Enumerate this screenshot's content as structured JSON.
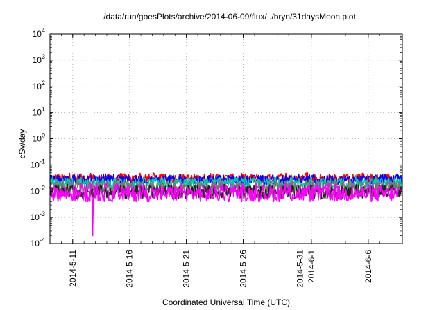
{
  "chart_data": {
    "type": "line",
    "title": "/data/run/goesPlots/archive/2014-06-09/flux/../bryn/31daysMoon.plot",
    "xlabel": "Coordinated Universal Time (UTC)",
    "ylabel": "cSv/day",
    "yscale": "log",
    "ylim": [
      0.0001,
      10000
    ],
    "xlim": [
      "2014-05-09T00:00",
      "2014-06-09T00:00"
    ],
    "y_ticks": [
      {
        "base": "10",
        "exp": "-4",
        "value": 0.0001
      },
      {
        "base": "10",
        "exp": "-3",
        "value": 0.001
      },
      {
        "base": "10",
        "exp": "-2",
        "value": 0.01
      },
      {
        "base": "10",
        "exp": "-1",
        "value": 0.1
      },
      {
        "base": "10",
        "exp": "0",
        "value": 1
      },
      {
        "base": "10",
        "exp": "1",
        "value": 10
      },
      {
        "base": "10",
        "exp": "2",
        "value": 100
      },
      {
        "base": "10",
        "exp": "3",
        "value": 1000
      },
      {
        "base": "10",
        "exp": "4",
        "value": 10000
      }
    ],
    "x_ticks": [
      "2014-5-11",
      "2014-5-16",
      "2014-5-21",
      "2014-5-26",
      "2014-5-31",
      "2014-6-1",
      "2014-6-6"
    ],
    "grid": true,
    "series": [
      {
        "color": "#ff0000",
        "min": 0.02,
        "max": 0.05,
        "typical": 0.03
      },
      {
        "color": "#0000ff",
        "min": 0.018,
        "max": 0.045,
        "typical": 0.027
      },
      {
        "color": "#00ccaa",
        "min": 0.012,
        "max": 0.035,
        "typical": 0.02
      },
      {
        "color": "#777777",
        "min": 0.008,
        "max": 0.025,
        "typical": 0.014
      },
      {
        "color": "#222222",
        "min": 0.005,
        "max": 0.018,
        "typical": 0.009
      },
      {
        "color": "#ff00ff",
        "min": 0.004,
        "max": 0.02,
        "typical": 0.008,
        "spike": {
          "x": "2014-05-12T18:00",
          "value": 0.0002
        }
      }
    ]
  }
}
